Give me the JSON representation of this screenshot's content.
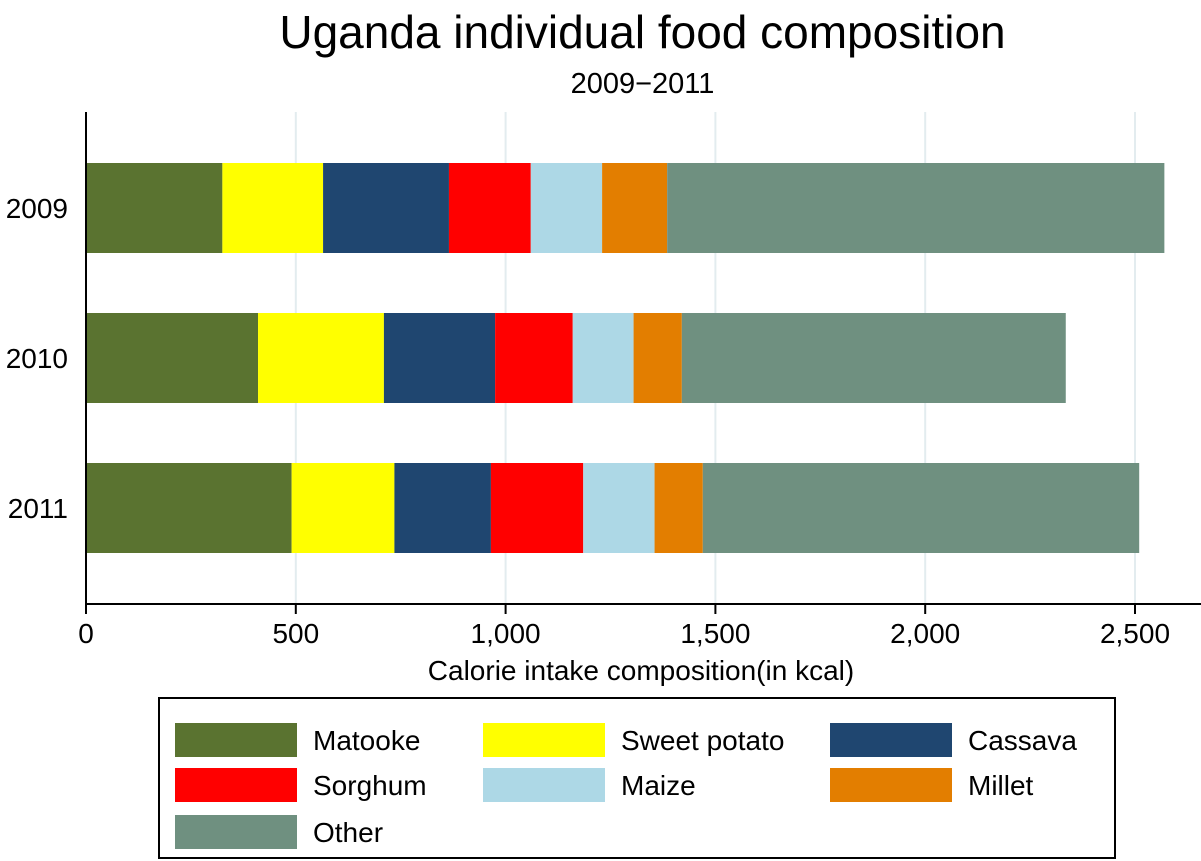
{
  "chart_data": {
    "type": "bar",
    "orientation": "horizontal",
    "stacked": true,
    "title": "Uganda individual food composition",
    "subtitle": "2009−2011",
    "xlabel": "Calorie intake composition(in kcal)",
    "ylabel": "",
    "categories": [
      "2009",
      "2010",
      "2011"
    ],
    "xlim": [
      0,
      2650
    ],
    "xticks": [
      0,
      500,
      1000,
      1500,
      2000,
      2500
    ],
    "xtick_labels": [
      "0",
      "500",
      "1,000",
      "1,500",
      "2,000",
      "2,500"
    ],
    "grid": "vertical",
    "legend_position": "bottom",
    "series": [
      {
        "name": "Matooke",
        "color": "#5a7330",
        "values": [
          325,
          410,
          490
        ]
      },
      {
        "name": "Sweet potato",
        "color": "#ffff00",
        "values": [
          240,
          300,
          245
        ]
      },
      {
        "name": "Cassava",
        "color": "#1f4670",
        "values": [
          300,
          265,
          230
        ]
      },
      {
        "name": "Sorghum",
        "color": "#ff0000",
        "values": [
          195,
          185,
          220
        ]
      },
      {
        "name": "Maize",
        "color": "#add8e6",
        "values": [
          170,
          145,
          170
        ]
      },
      {
        "name": "Millet",
        "color": "#e37e00",
        "values": [
          155,
          115,
          115
        ]
      },
      {
        "name": "Other",
        "color": "#6f9080",
        "values": [
          1185,
          915,
          1040
        ]
      }
    ]
  }
}
